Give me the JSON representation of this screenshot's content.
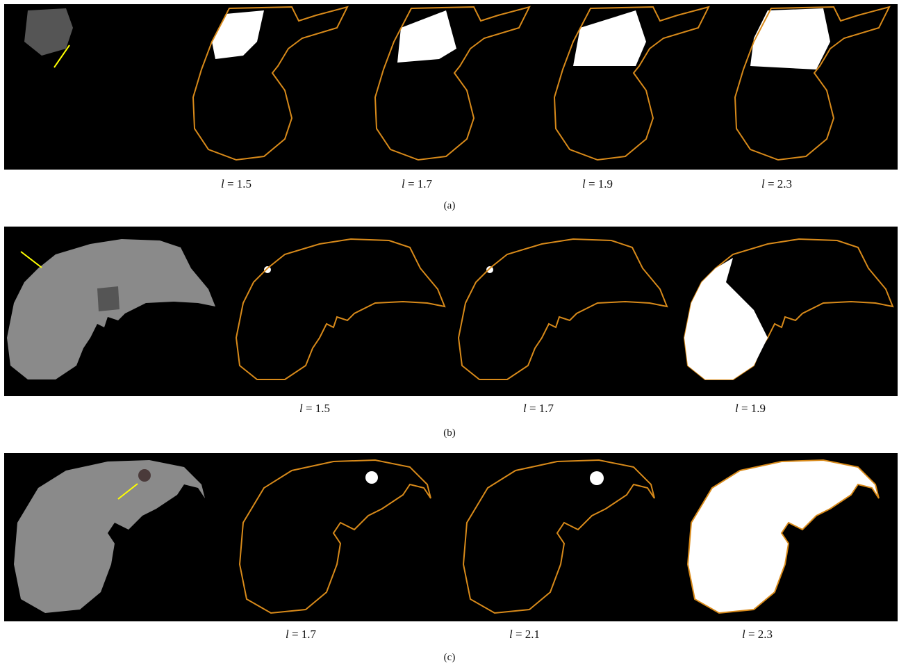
{
  "panels": [
    {
      "labels": [
        "l = 1.5",
        "l = 1.7",
        "l = 1.9",
        "l = 2.3"
      ],
      "caption": "(a)"
    },
    {
      "labels": [
        "l = 1.5",
        "l = 1.7",
        "l = 1.9"
      ],
      "caption": "(b)"
    },
    {
      "labels": [
        "l = 1.7",
        "l = 2.1",
        "l = 2.3"
      ],
      "caption": "(c)"
    }
  ]
}
